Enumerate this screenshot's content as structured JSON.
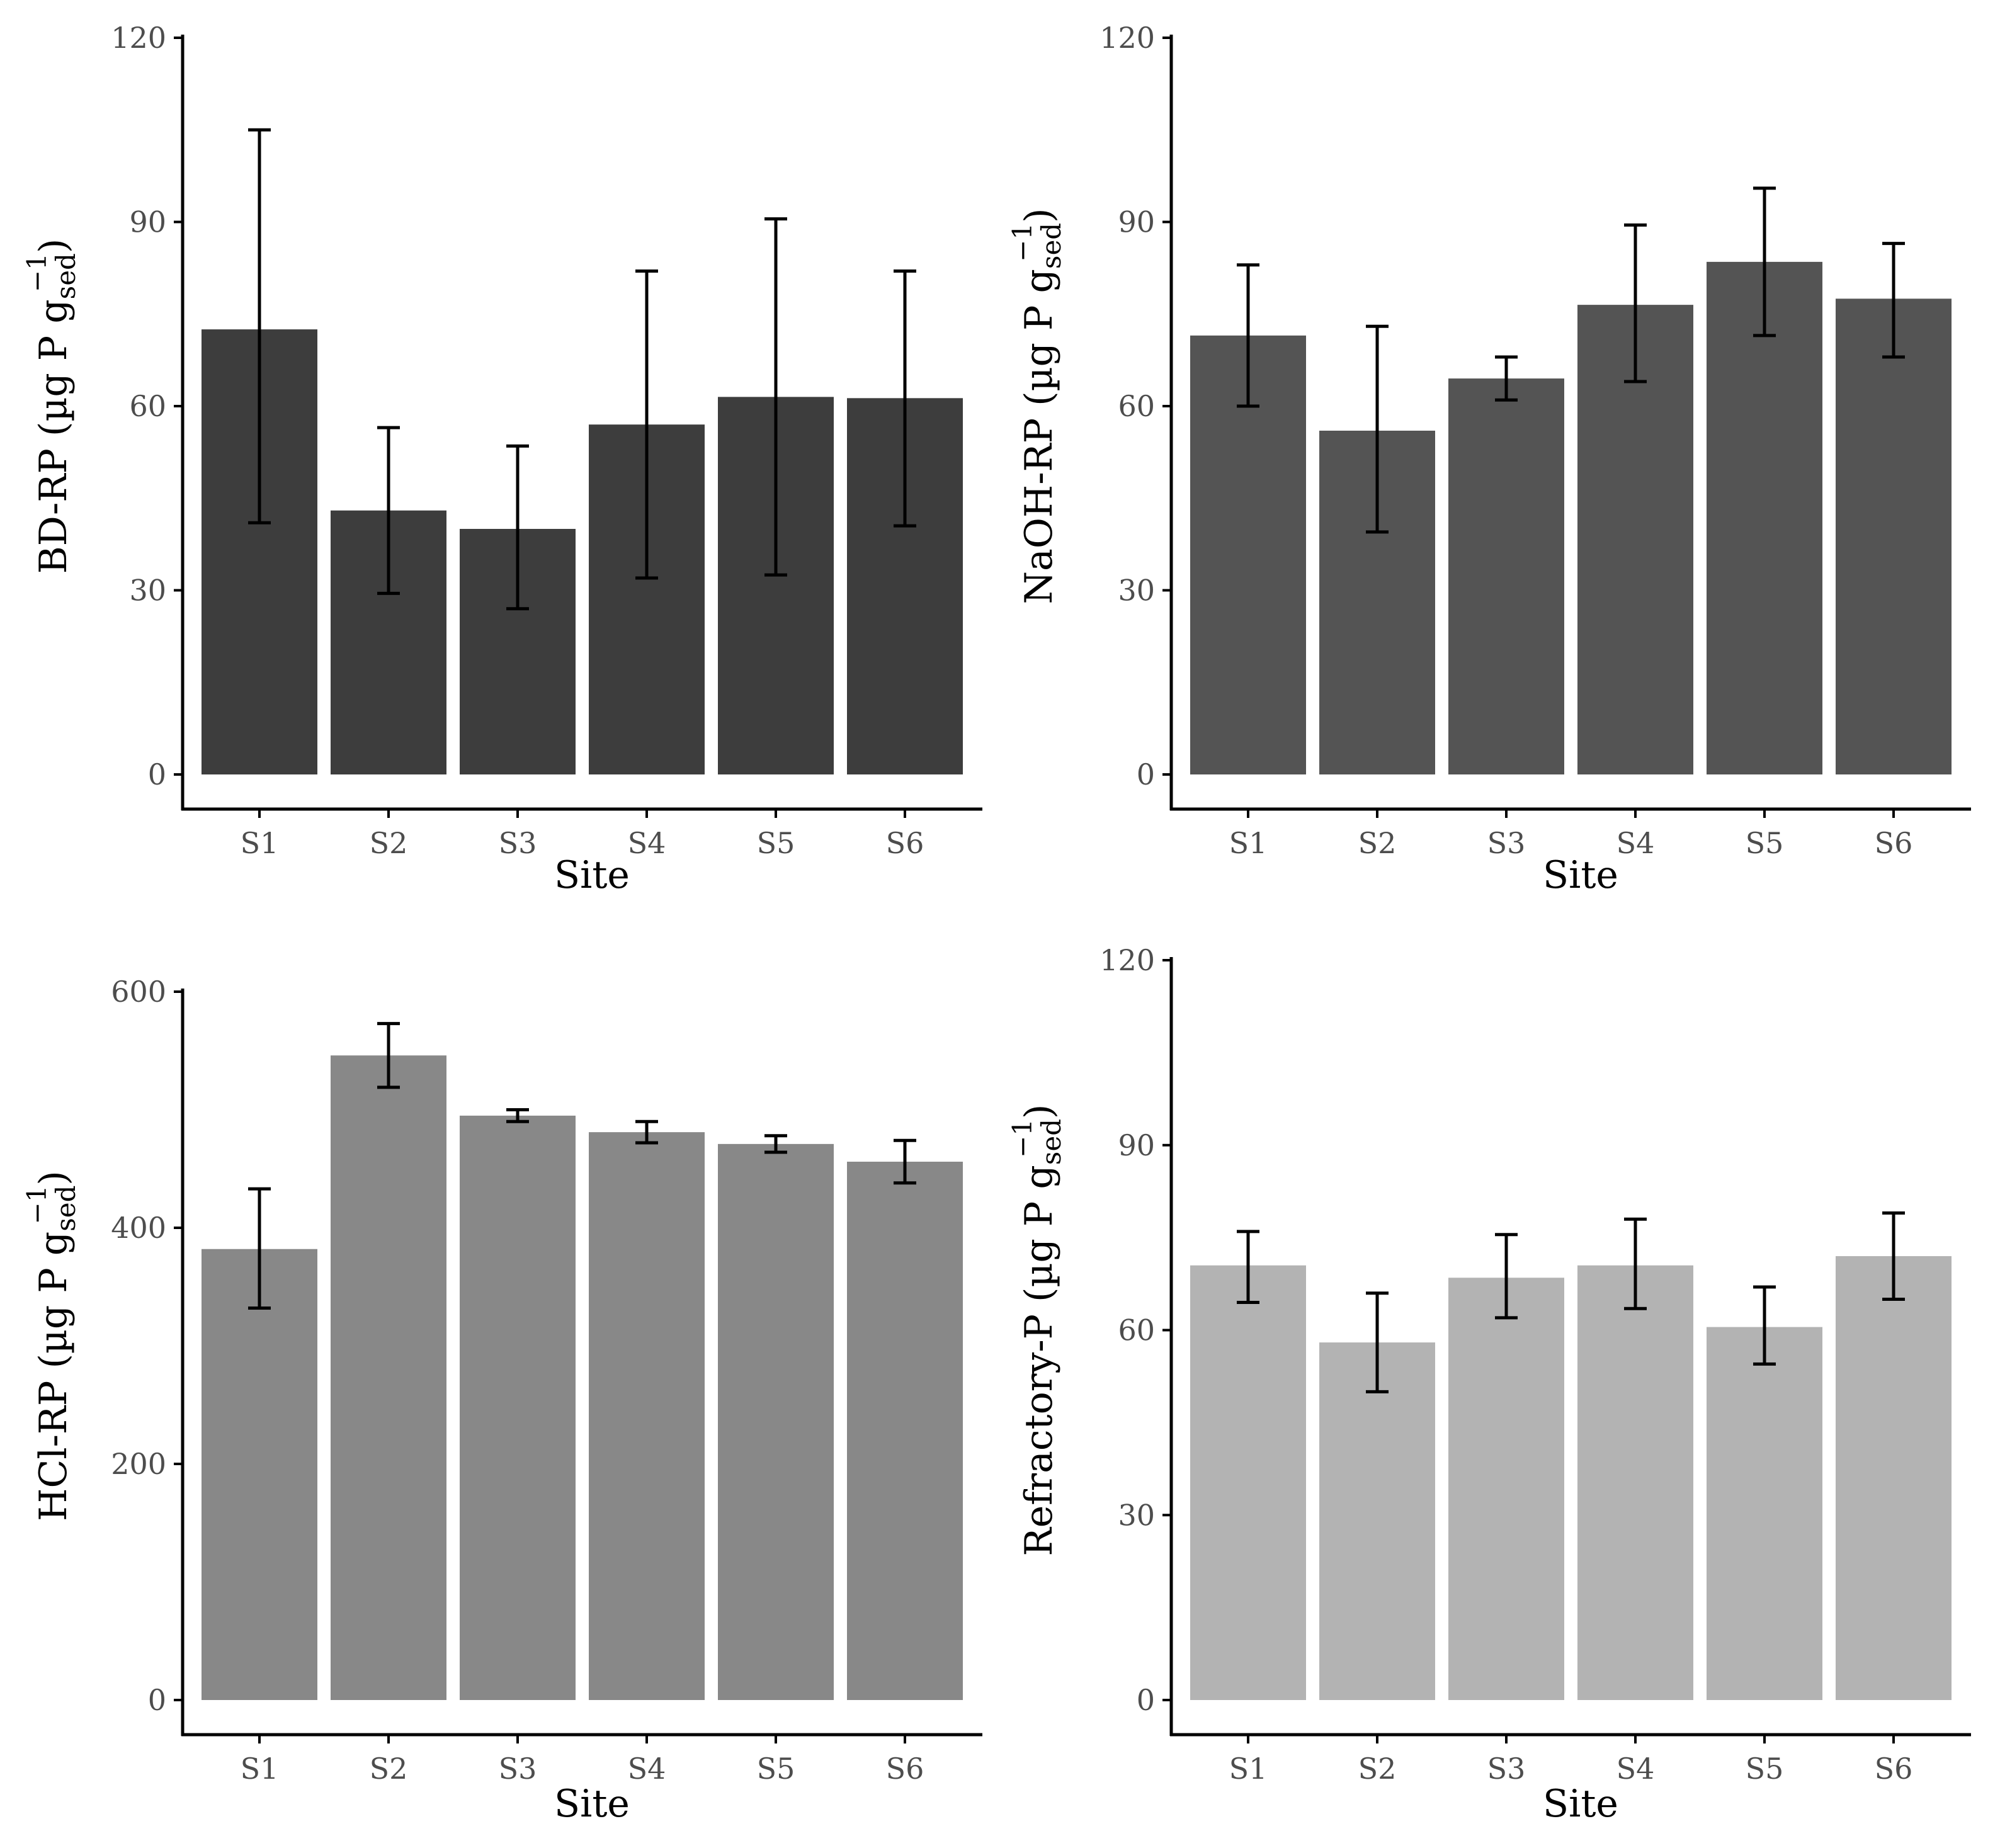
{
  "colors": {
    "bd": "#3d3d3d",
    "naoh": "#545454",
    "hcl": "#888888",
    "refractory": "#b3b3b3"
  },
  "chart_data": [
    {
      "type": "bar",
      "categories": [
        "S1",
        "S2",
        "S3",
        "S4",
        "S5",
        "S6"
      ],
      "values": [
        72.5,
        43,
        40,
        57,
        61.5,
        61.3
      ],
      "error_low": [
        41,
        29.5,
        27,
        32,
        32.5,
        40.5
      ],
      "error_high": [
        105,
        56.5,
        53.5,
        82,
        90.5,
        82
      ],
      "xlabel": "Site",
      "ylabel": "BD-RP (µg P g",
      "ylabel_sub": "sed",
      "ylabel_sup": "−1",
      "ylabel_end": ")",
      "ylim": [
        0,
        120
      ],
      "yticks": [
        "0",
        "30",
        "60",
        "90",
        "120"
      ],
      "color": "#3d3d3d"
    },
    {
      "type": "bar",
      "categories": [
        "S1",
        "S2",
        "S3",
        "S4",
        "S5",
        "S6"
      ],
      "values": [
        71.5,
        56,
        64.5,
        76.5,
        83.5,
        77.5
      ],
      "error_low": [
        60,
        39.5,
        61,
        64,
        71.5,
        68
      ],
      "error_high": [
        83,
        73,
        68,
        89.5,
        95.5,
        86.5
      ],
      "xlabel": "Site",
      "ylabel": "NaOH-RP (µg P g",
      "ylabel_sub": "sed",
      "ylabel_sup": "−1",
      "ylabel_end": ")",
      "ylim": [
        0,
        120
      ],
      "yticks": [
        "0",
        "30",
        "60",
        "90",
        "120"
      ],
      "color": "#545454"
    },
    {
      "type": "bar",
      "categories": [
        "S1",
        "S2",
        "S3",
        "S4",
        "S5",
        "S6"
      ],
      "values": [
        382,
        546,
        495,
        481,
        471,
        456
      ],
      "error_low": [
        332,
        519,
        490,
        472,
        464,
        438
      ],
      "error_high": [
        433,
        573,
        500,
        490,
        478,
        474
      ],
      "xlabel": "Site",
      "ylabel": "HCl-RP (µg P g",
      "ylabel_sub": "sed",
      "ylabel_sup": "−1",
      "ylabel_end": ")",
      "ylim": [
        0,
        600
      ],
      "yticks": [
        "0",
        "200",
        "400",
        "600"
      ],
      "color": "#888888"
    },
    {
      "type": "bar",
      "categories": [
        "S1",
        "S2",
        "S3",
        "S4",
        "S5",
        "S6"
      ],
      "values": [
        70.5,
        58,
        68.5,
        70.5,
        60.5,
        72
      ],
      "error_low": [
        64.5,
        50,
        62,
        63.5,
        54.5,
        65
      ],
      "error_high": [
        76,
        66,
        75.5,
        78,
        67,
        79
      ],
      "xlabel": "Site",
      "ylabel": "Refractory-P (µg P g",
      "ylabel_sub": "sed",
      "ylabel_sup": "−1",
      "ylabel_end": ")",
      "ylim": [
        0,
        120
      ],
      "yticks": [
        "0",
        "30",
        "60",
        "90",
        "120"
      ],
      "color": "#b3b3b3"
    }
  ]
}
